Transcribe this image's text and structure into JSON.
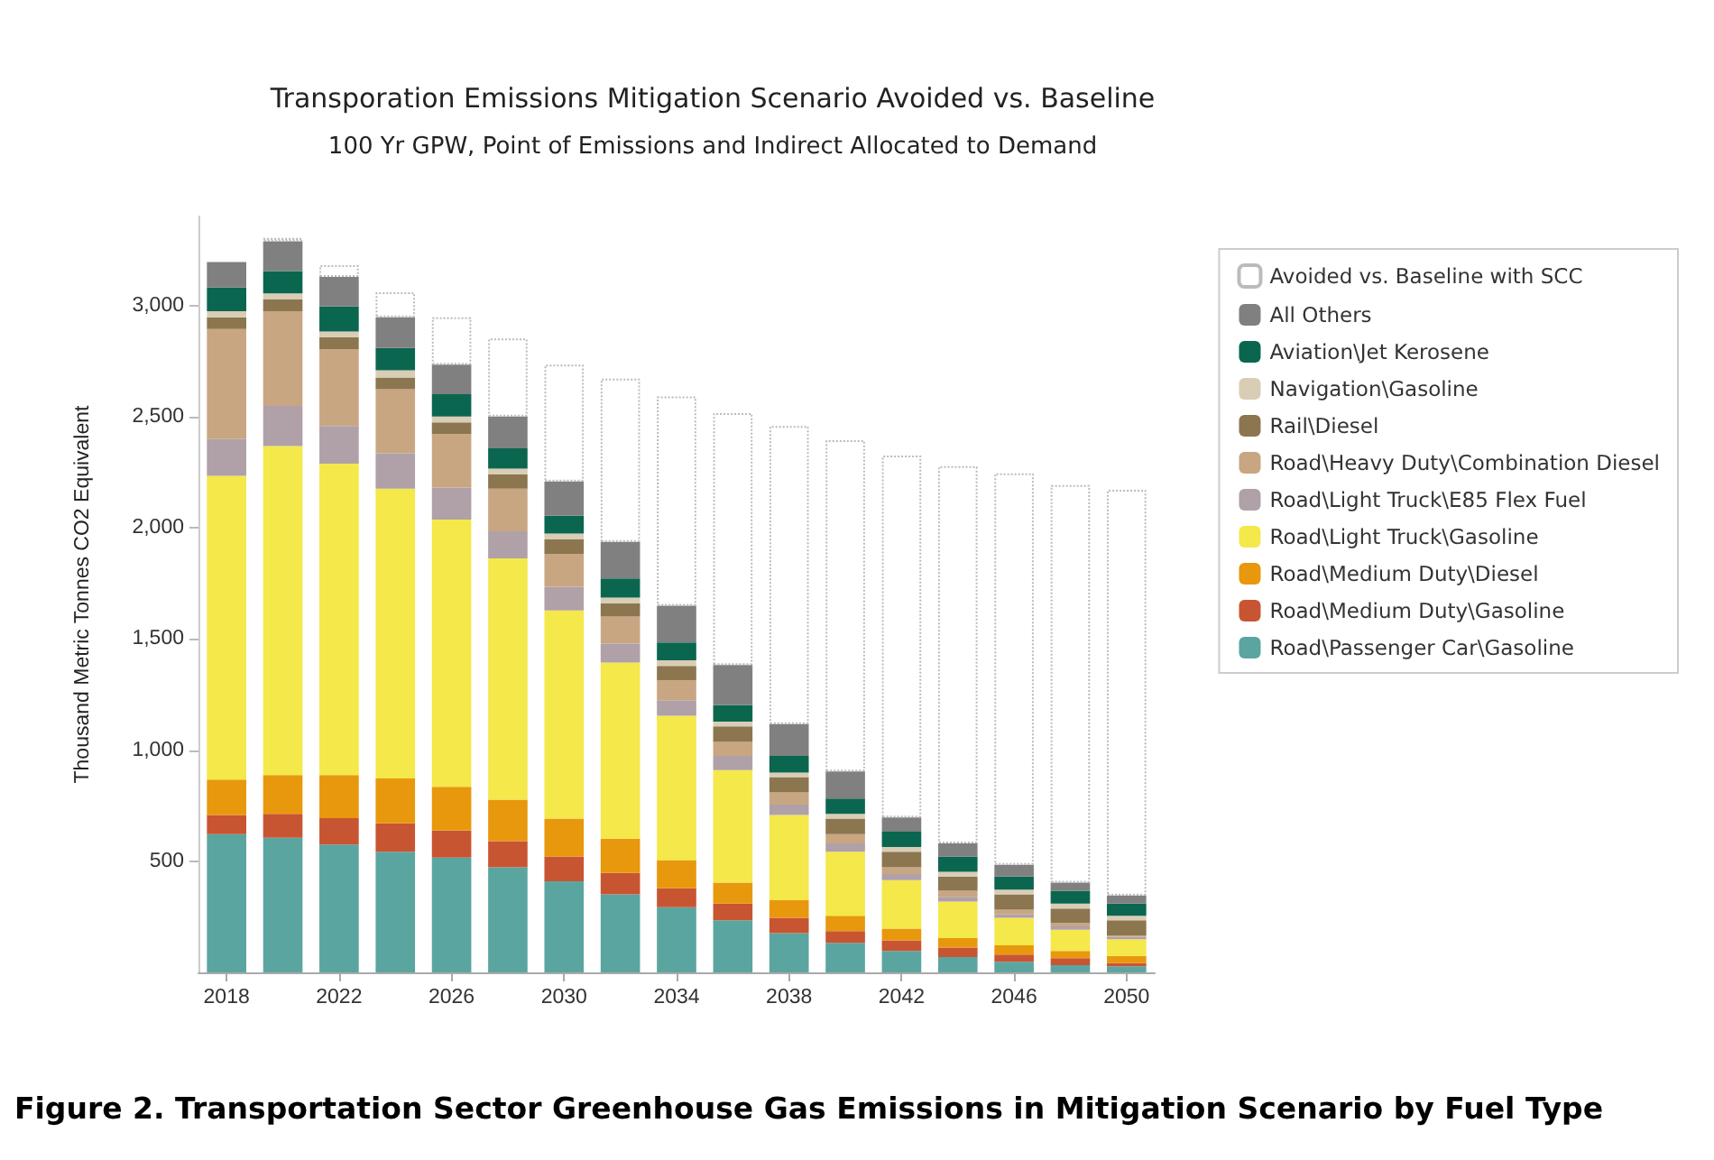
{
  "chart_data": {
    "type": "bar",
    "title": "Transporation Emissions Mitigation Scenario Avoided vs. Baseline",
    "subtitle": "100 Yr GPW, Point of Emissions and Indirect Allocated to Demand",
    "ylabel": "Thousand Metric Tonnes CO2 Equivalent",
    "annotations": [
      "Figure 2. Transportation Sector Greenhouse Gas Emissions in Mitigation Scenario by Fuel Type"
    ],
    "categories": [
      "2018",
      null,
      "2022",
      null,
      "2026",
      null,
      "2030",
      null,
      "2034",
      null,
      "2038",
      null,
      "2042",
      null,
      "2046",
      null,
      "2050"
    ],
    "stacked": true,
    "legend": "right",
    "ylim": [
      0,
      3400
    ],
    "yticks": [
      500,
      {
        "value": 1000,
        "label": "1,000"
      },
      {
        "value": 1500,
        "label": "1,500"
      },
      {
        "value": 2000,
        "label": "2,000"
      },
      {
        "value": 2500,
        "label": "2,500"
      },
      {
        "value": 3000,
        "label": "3,000"
      }
    ],
    "series": [
      {
        "name": "Road\\Passenger Car\\Gasoline",
        "color": "#5ba5a0",
        "values": [
          622,
          606,
          575,
          543,
          516,
          473,
          410,
          351,
          293,
          234,
          176,
          133,
          96,
          69,
          48,
          32,
          27
        ]
      },
      {
        "name": "Road\\Medium Duty\\Gasoline",
        "color": "#c85532",
        "values": [
          86,
          107,
          119,
          127,
          122,
          117,
          111,
          96,
          85,
          75,
          69,
          53,
          48,
          43,
          32,
          32,
          16
        ]
      },
      {
        "name": "Road\\Medium Duty\\Diesel",
        "color": "#e8980c",
        "values": [
          159,
          175,
          194,
          202,
          197,
          187,
          171,
          154,
          127,
          95,
          80,
          69,
          53,
          42,
          42,
          32,
          31
        ]
      },
      {
        "name": "Road\\Light Truck\\Gasoline",
        "color": "#f4e84a",
        "values": [
          1367,
          1479,
          1400,
          1304,
          1202,
          1085,
          936,
          793,
          649,
          506,
          383,
          288,
          218,
          165,
          123,
          96,
          75
        ]
      },
      {
        "name": "Road\\Light Truck\\E85 Flex Fuel",
        "color": "#b0a0a8",
        "values": [
          165,
          181,
          170,
          159,
          144,
          122,
          106,
          85,
          70,
          64,
          47,
          37,
          27,
          21,
          16,
          15,
          11
        ]
      },
      {
        "name": "Road\\Heavy Duty\\Combination Diesel",
        "color": "#c8a682",
        "values": [
          495,
          426,
          346,
          288,
          240,
          192,
          149,
          122,
          90,
          63,
          54,
          42,
          31,
          27,
          21,
          16,
          5
        ]
      },
      {
        "name": "Rail\\Diesel",
        "color": "#8b7650",
        "values": [
          53,
          53,
          53,
          53,
          53,
          64,
          64,
          59,
          64,
          70,
          69,
          70,
          70,
          64,
          69,
          64,
          69
        ]
      },
      {
        "name": "Navigation\\Gasoline",
        "color": "#d9cdb5",
        "values": [
          27,
          27,
          26,
          32,
          26,
          26,
          27,
          26,
          26,
          21,
          21,
          21,
          21,
          21,
          21,
          22,
          21
        ]
      },
      {
        "name": "Aviation\\Jet Kerosene",
        "color": "#0b6650",
        "values": [
          106,
          101,
          112,
          101,
          101,
          91,
          80,
          86,
          80,
          74,
          75,
          69,
          69,
          69,
          59,
          58,
          54
        ]
      },
      {
        "name": "All Others",
        "color": "#808080",
        "values": [
          115,
          133,
          133,
          138,
          133,
          143,
          154,
          164,
          165,
          181,
          143,
          122,
          64,
          59,
          53,
          37,
          37
        ]
      },
      {
        "name": "Avoided vs. Baseline with SCC",
        "color": "#ffffff",
        "values": [
          null,
          16,
          53,
          112,
          213,
          351,
          526,
          735,
          942,
          1133,
          1341,
          1490,
          1628,
          1697,
          1761,
          1788,
          1825
        ]
      }
    ]
  }
}
